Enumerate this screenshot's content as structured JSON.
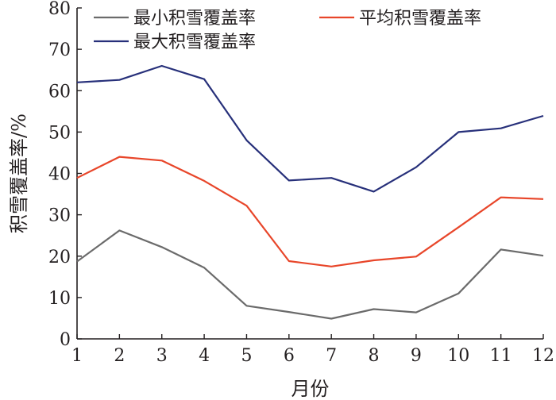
{
  "chart_data": {
    "type": "line",
    "xlabel": "月份",
    "ylabel": "积雪覆盖率/%",
    "x": [
      1,
      2,
      3,
      4,
      5,
      6,
      7,
      8,
      9,
      10,
      11,
      12
    ],
    "xlim": [
      1,
      12
    ],
    "ylim": [
      0,
      80
    ],
    "yticks": [
      0,
      10,
      20,
      30,
      40,
      50,
      60,
      70,
      80
    ],
    "grid": false,
    "legend_position": "top",
    "series": [
      {
        "name": "最小积雪覆盖率",
        "color": "#6b6b6b",
        "values": [
          18.7,
          26.2,
          22.2,
          17.2,
          8.0,
          6.5,
          4.9,
          7.2,
          6.4,
          11.0,
          21.6,
          20.1
        ]
      },
      {
        "name": "平均积雪覆盖率",
        "color": "#e8462a",
        "values": [
          38.9,
          44.0,
          43.1,
          38.2,
          32.2,
          18.8,
          17.5,
          19.0,
          19.9,
          27.0,
          34.2,
          33.8
        ]
      },
      {
        "name": "最大积雪覆盖率",
        "color": "#27307a",
        "values": [
          62.0,
          62.6,
          66.0,
          62.8,
          48.0,
          38.3,
          38.9,
          35.6,
          41.5,
          50.0,
          50.9,
          53.9
        ]
      }
    ]
  }
}
